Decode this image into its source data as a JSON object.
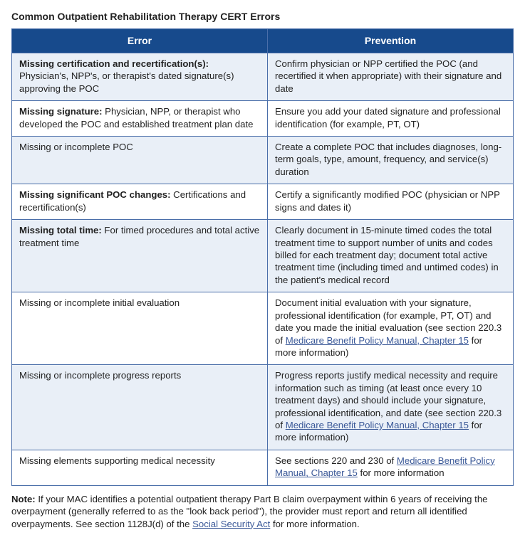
{
  "title": "Common Outpatient Rehabilitation Therapy CERT Errors",
  "table": {
    "header_bg": "#174a8c",
    "header_color": "#ffffff",
    "border_color": "#4a6ea9",
    "row_bg_a": "#e9eff7",
    "row_bg_b": "#ffffff",
    "columns": [
      "Error",
      "Prevention"
    ],
    "col_widths": [
      "51%",
      "49%"
    ],
    "rows": [
      {
        "error_bold": "Missing certification and recertification(s):",
        "error_rest": " Physician's, NPP's, or therapist's dated signature(s) approving the POC",
        "prevention_parts": [
          {
            "t": "Confirm physician or NPP certified the POC (and recertified it when appropriate) with their signature and date"
          }
        ]
      },
      {
        "error_bold": "Missing signature:",
        "error_rest": " Physician, NPP, or therapist who developed the POC and established treatment plan date",
        "prevention_parts": [
          {
            "t": "Ensure you add your dated signature and professional identification (for example, PT, OT)"
          }
        ]
      },
      {
        "error_bold": "",
        "error_rest": "Missing or incomplete POC",
        "prevention_parts": [
          {
            "t": "Create a complete POC that includes diagnoses, long-term goals, type, amount, frequency, and service(s) duration"
          }
        ]
      },
      {
        "error_bold": "Missing significant POC changes:",
        "error_rest": " Certifications and recertification(s)",
        "prevention_parts": [
          {
            "t": "Certify a significantly modified POC (physician or NPP signs and dates it)"
          }
        ]
      },
      {
        "error_bold": "Missing total time:",
        "error_rest": " For timed procedures and total active treatment time",
        "prevention_parts": [
          {
            "t": "Clearly document in 15-minute timed codes the total treatment time to support number of units and codes billed for each treatment day; document total active treatment time (including timed and untimed codes) in the patient's medical record"
          }
        ]
      },
      {
        "error_bold": "",
        "error_rest": "Missing or incomplete initial evaluation",
        "prevention_parts": [
          {
            "t": "Document initial evaluation with your signature, professional identification (for example, PT, OT) and date you made the initial evaluation (see section 220.3 of "
          },
          {
            "t": "Medicare Benefit Policy Manual, Chapter 15",
            "link": true
          },
          {
            "t": " for more information)"
          }
        ]
      },
      {
        "error_bold": "",
        "error_rest": "Missing or incomplete progress reports",
        "prevention_parts": [
          {
            "t": "Progress reports justify medical necessity and require information such as timing (at least once every 10 treatment days) and should include your signature, professional identification, and date (see section 220.3 of "
          },
          {
            "t": "Medicare Benefit Policy Manual, Chapter 15",
            "link": true
          },
          {
            "t": " for more information)"
          }
        ]
      },
      {
        "error_bold": "",
        "error_rest": "Missing elements supporting medical necessity",
        "prevention_parts": [
          {
            "t": "See sections 220 and 230 of "
          },
          {
            "t": "Medicare Benefit Policy Manual, Chapter 15",
            "link": true
          },
          {
            "t": " for more information"
          }
        ]
      }
    ]
  },
  "note": {
    "label": "Note:",
    "parts": [
      {
        "t": " If your MAC identifies a potential outpatient therapy Part B claim overpayment within 6 years of receiving the overpayment (generally referred to as the \"look back period\"), the provider must report and return all identified overpayments. See section 1128J(d) of the "
      },
      {
        "t": "Social Security Act",
        "link": true
      },
      {
        "t": " for more information."
      }
    ]
  }
}
